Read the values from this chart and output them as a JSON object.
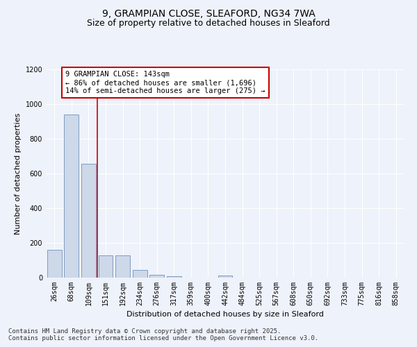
{
  "title_line1": "9, GRAMPIAN CLOSE, SLEAFORD, NG34 7WA",
  "title_line2": "Size of property relative to detached houses in Sleaford",
  "xlabel": "Distribution of detached houses by size in Sleaford",
  "ylabel": "Number of detached properties",
  "bar_categories": [
    "26sqm",
    "68sqm",
    "109sqm",
    "151sqm",
    "192sqm",
    "234sqm",
    "276sqm",
    "317sqm",
    "359sqm",
    "400sqm",
    "442sqm",
    "484sqm",
    "525sqm",
    "567sqm",
    "608sqm",
    "650sqm",
    "692sqm",
    "733sqm",
    "775sqm",
    "816sqm",
    "858sqm"
  ],
  "bar_values": [
    160,
    940,
    655,
    130,
    130,
    45,
    15,
    8,
    0,
    0,
    12,
    0,
    0,
    0,
    0,
    0,
    0,
    0,
    0,
    0,
    0
  ],
  "bar_color": "#cdd8e8",
  "bar_edge_color": "#5a80b0",
  "red_line_bar_index": 3,
  "annotation_text": "9 GRAMPIAN CLOSE: 143sqm\n← 86% of detached houses are smaller (1,696)\n14% of semi-detached houses are larger (275) →",
  "annotation_box_facecolor": "#ffffff",
  "annotation_box_edgecolor": "#cc0000",
  "ymax": 1200,
  "yticks": [
    0,
    200,
    400,
    600,
    800,
    1000,
    1200
  ],
  "background_color": "#eef2fa",
  "grid_color": "#ffffff",
  "footer_line1": "Contains HM Land Registry data © Crown copyright and database right 2025.",
  "footer_line2": "Contains public sector information licensed under the Open Government Licence v3.0.",
  "title_fontsize": 10,
  "subtitle_fontsize": 9,
  "axis_label_fontsize": 8,
  "tick_fontsize": 7,
  "annotation_fontsize": 7.5,
  "footer_fontsize": 6.5
}
